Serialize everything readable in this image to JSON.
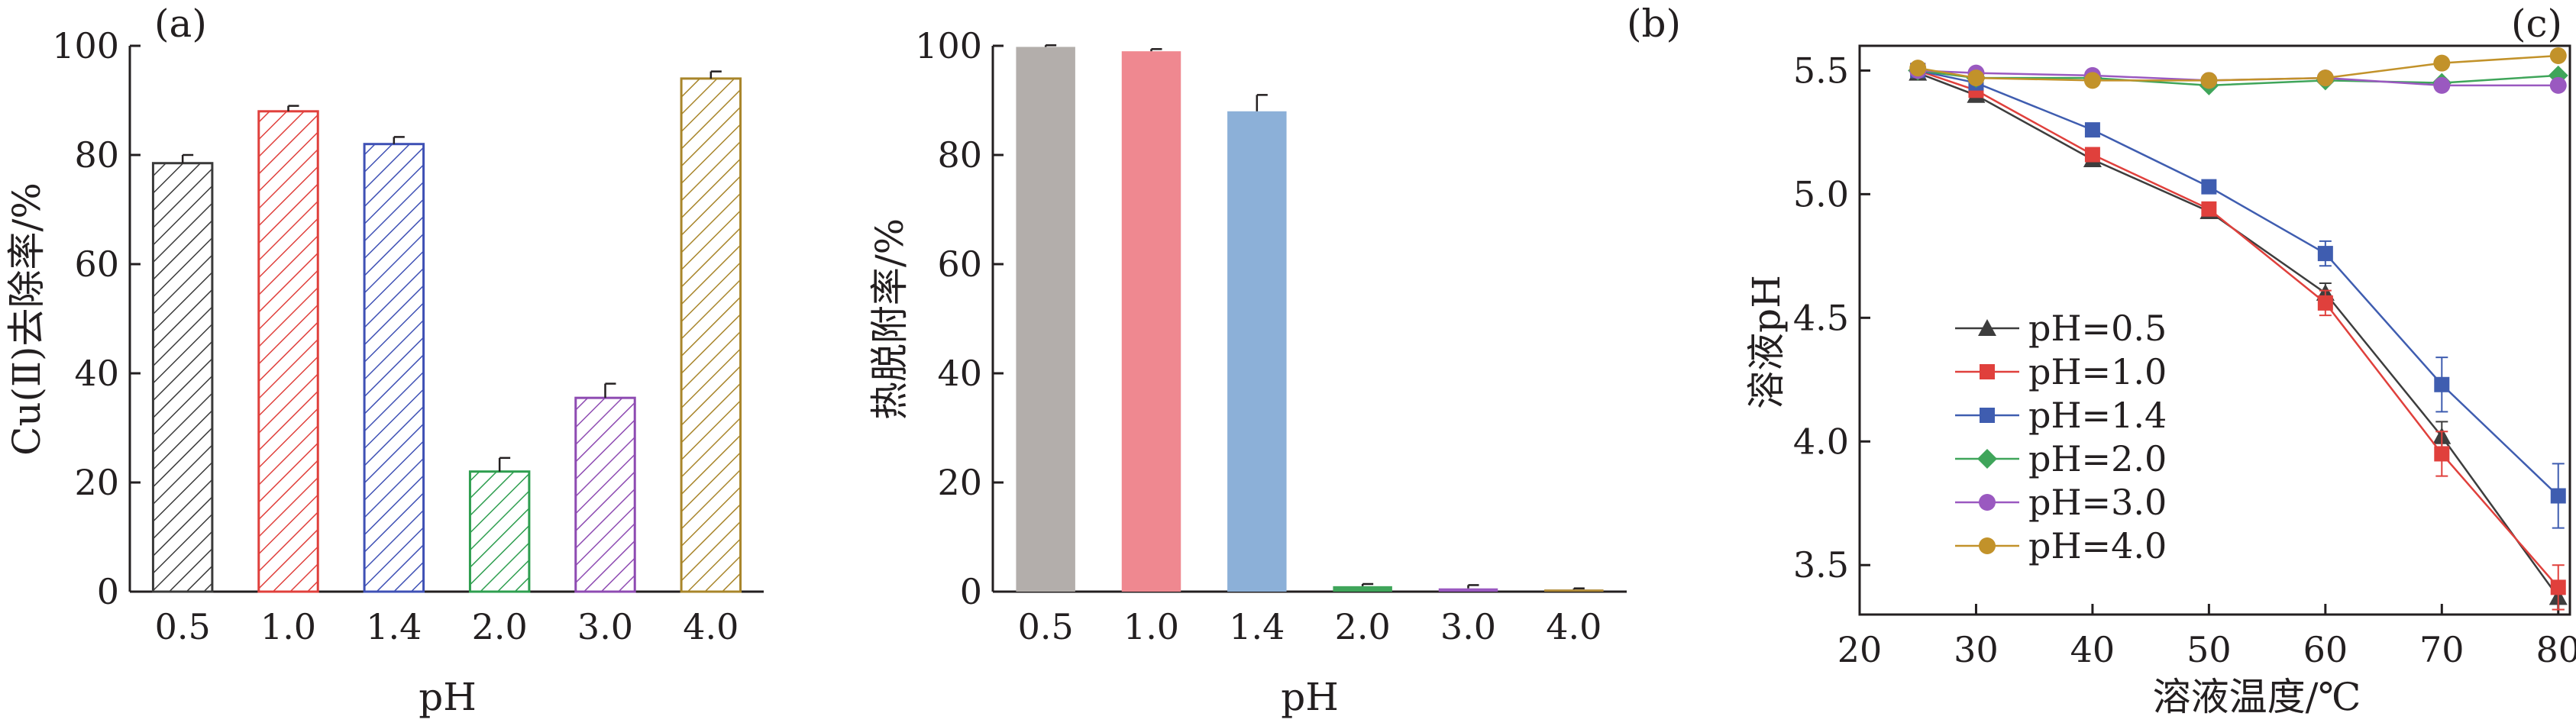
{
  "chart_data": [
    {
      "type": "bar",
      "panel_label": "(a)",
      "xlabel": "pH",
      "ylabel": "Cu(Ⅱ)去除率/%",
      "categories": [
        "0.5",
        "1.0",
        "1.4",
        "2.0",
        "3.0",
        "4.0"
      ],
      "values": [
        78.5,
        88.0,
        82.0,
        22.0,
        35.5,
        94.0
      ],
      "errors": [
        1.5,
        1.0,
        1.3,
        2.5,
        2.6,
        1.3
      ],
      "ylim": [
        0,
        100
      ],
      "yticks": [
        "0",
        "20",
        "40",
        "60",
        "80",
        "100"
      ],
      "bar_style": "hatched",
      "colors": [
        "#3a3a3a",
        "#e0403c",
        "#3f51b5",
        "#2e9e4f",
        "#8e4bb2",
        "#a8852a"
      ]
    },
    {
      "type": "bar",
      "panel_label": "(b)",
      "xlabel": "pH",
      "ylabel": "热脱附率/%",
      "categories": [
        "0.5",
        "1.0",
        "1.4",
        "2.0",
        "3.0",
        "4.0"
      ],
      "values": [
        99.8,
        99.0,
        88.0,
        1.0,
        0.6,
        0.4
      ],
      "errors": [
        0.3,
        0.4,
        3.0,
        0.4,
        0.6,
        0.2
      ],
      "ylim": [
        0,
        100
      ],
      "yticks": [
        "0",
        "20",
        "40",
        "60",
        "80",
        "100"
      ],
      "bar_style": "solid",
      "colors": [
        "#b3aeab",
        "#ef8890",
        "#8cb0d8",
        "#3fa55a",
        "#9a59c0",
        "#b08a36"
      ]
    },
    {
      "type": "line",
      "panel_label": "(c)",
      "xlabel": "溶液温度/℃",
      "ylabel": "溶液pH",
      "x": [
        25,
        30,
        40,
        50,
        60,
        70,
        80
      ],
      "xlim": [
        20,
        81
      ],
      "ylim": [
        3.3,
        5.6
      ],
      "xticks": [
        "20",
        "30",
        "40",
        "50",
        "60",
        "70",
        "80"
      ],
      "yticks": [
        "3.5",
        "4.0",
        "4.5",
        "5.0",
        "5.5"
      ],
      "legend_position": "lower-left",
      "series": [
        {
          "name": "pH=0.5",
          "color": "#3d3d3d",
          "marker": "triangle",
          "values": [
            5.49,
            5.4,
            5.14,
            4.93,
            4.6,
            4.02,
            3.37
          ],
          "errors": [
            0.01,
            0.02,
            0.02,
            0.02,
            0.04,
            0.06,
            0.05
          ]
        },
        {
          "name": "pH=1.0",
          "color": "#e0403c",
          "marker": "square",
          "values": [
            5.5,
            5.42,
            5.16,
            4.94,
            4.56,
            3.95,
            3.41
          ],
          "errors": [
            0.01,
            0.02,
            0.02,
            0.02,
            0.05,
            0.09,
            0.09
          ]
        },
        {
          "name": "pH=1.4",
          "color": "#3f5db0",
          "marker": "square",
          "values": [
            5.5,
            5.45,
            5.26,
            5.03,
            4.76,
            4.23,
            3.78
          ],
          "errors": [
            0.01,
            0.02,
            0.02,
            0.02,
            0.05,
            0.11,
            0.13
          ]
        },
        {
          "name": "pH=2.0",
          "color": "#3fa55a",
          "marker": "diamond",
          "values": [
            5.5,
            5.47,
            5.47,
            5.44,
            5.46,
            5.45,
            5.48
          ],
          "errors": [
            0.01,
            0.01,
            0.01,
            0.01,
            0.01,
            0.01,
            0.01
          ]
        },
        {
          "name": "pH=3.0",
          "color": "#9a59c0",
          "marker": "circle",
          "values": [
            5.5,
            5.49,
            5.48,
            5.46,
            5.47,
            5.44,
            5.44
          ],
          "errors": [
            0.01,
            0.01,
            0.01,
            0.01,
            0.01,
            0.01,
            0.02
          ]
        },
        {
          "name": "pH=4.0",
          "color": "#c2922a",
          "marker": "circle",
          "values": [
            5.51,
            5.47,
            5.46,
            5.46,
            5.47,
            5.53,
            5.56
          ],
          "errors": [
            0.01,
            0.01,
            0.01,
            0.01,
            0.01,
            0.01,
            0.01
          ]
        }
      ]
    }
  ]
}
